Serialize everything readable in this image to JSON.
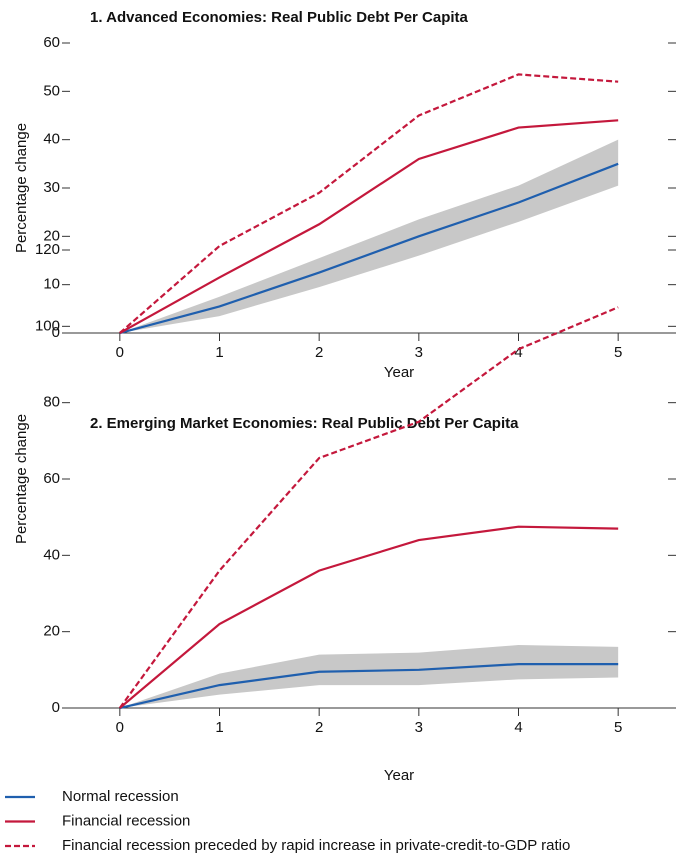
{
  "chart_data": [
    {
      "type": "line",
      "title": "1. Advanced Economies: Real Public Debt Per Capita",
      "x": [
        0,
        1,
        2,
        3,
        4,
        5
      ],
      "xlabel": "Year",
      "ylabel": "Percentage change",
      "xlim": [
        -0.5,
        5.5
      ],
      "xticks": [
        0,
        1,
        2,
        3,
        4,
        5
      ],
      "ylim": [
        0,
        60
      ],
      "yticks": [
        0,
        10,
        20,
        30,
        40,
        50,
        60
      ],
      "series": [
        {
          "name": "Normal recession",
          "color": "#1f5fae",
          "dashed": false,
          "values": [
            0,
            5.5,
            12.5,
            20,
            27,
            35
          ],
          "band": {
            "color": "#c8c8c8",
            "lower": [
              0,
              3.5,
              9.5,
              16,
              23,
              30.5
            ],
            "upper": [
              0,
              7.5,
              15.5,
              23.5,
              30.5,
              40
            ]
          }
        },
        {
          "name": "Financial recession",
          "color": "#c4183c",
          "dashed": false,
          "values": [
            0,
            11.5,
            22.5,
            36,
            42.5,
            44
          ]
        },
        {
          "name": "Financial recession preceded by rapid increase in private-credit-to-GDP ratio",
          "color": "#c4183c",
          "dashed": true,
          "values": [
            0,
            18,
            29,
            45,
            53.5,
            52
          ]
        }
      ]
    },
    {
      "type": "line",
      "title": "2. Emerging Market Economies: Real Public Debt Per Capita",
      "x": [
        0,
        1,
        2,
        3,
        4,
        5
      ],
      "xlabel": "Year",
      "ylabel": "Percentage change",
      "xlim": [
        -0.5,
        5.5
      ],
      "xticks": [
        0,
        1,
        2,
        3,
        4,
        5
      ],
      "ylim": [
        0,
        120
      ],
      "yticks": [
        0,
        20,
        40,
        60,
        80,
        100,
        120
      ],
      "series": [
        {
          "color": "#1f5fae",
          "dashed": false,
          "values": [
            0,
            6,
            9.5,
            10,
            11.5,
            11.5
          ],
          "band": {
            "color": "#c8c8c8",
            "lower": [
              0,
              3.5,
              6,
              6,
              7.5,
              8
            ],
            "upper": [
              0,
              9,
              14,
              14.5,
              16.5,
              16
            ]
          }
        },
        {
          "color": "#c4183c",
          "dashed": false,
          "values": [
            0,
            22,
            36,
            44,
            47.5,
            47
          ]
        },
        {
          "color": "#c4183c",
          "dashed": true,
          "values": [
            0,
            36,
            65.5,
            75,
            94,
            105
          ]
        }
      ]
    }
  ]
}
